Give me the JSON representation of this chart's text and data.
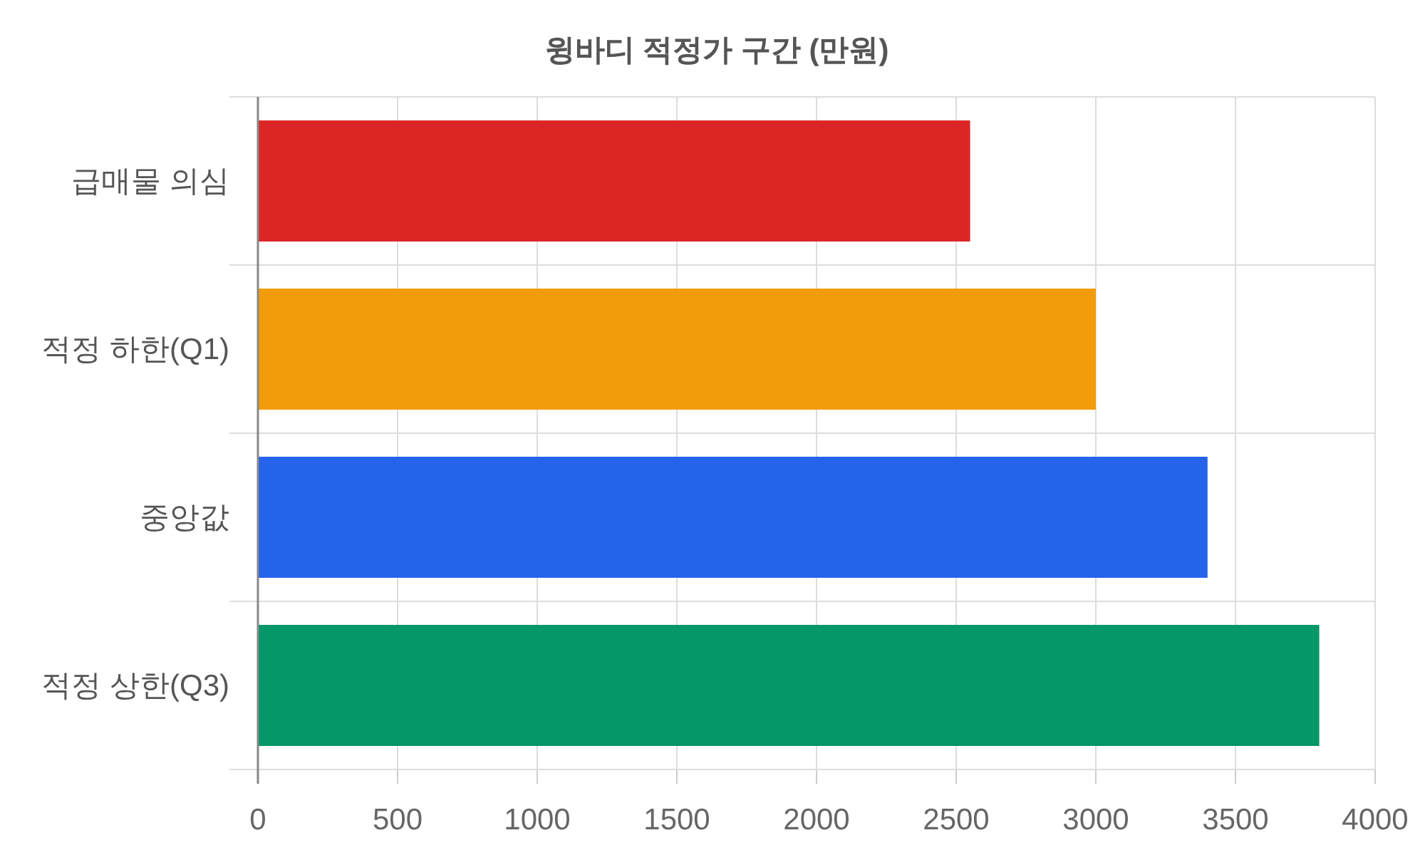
{
  "chart_data": {
    "type": "bar",
    "orientation": "horizontal",
    "title": "윙바디 적정가 구간 (만원)",
    "categories": [
      "급매물 의심",
      "적정 하한(Q1)",
      "중앙값",
      "적정 상한(Q3)"
    ],
    "values": [
      2550,
      3000,
      3400,
      3800
    ],
    "colors": [
      "#dc2626",
      "#f39c0b",
      "#2563eb",
      "#059669"
    ],
    "xlim": [
      0,
      4000
    ],
    "xticks": [
      0,
      500,
      1000,
      1500,
      2000,
      2500,
      3000,
      3500,
      4000
    ],
    "grid": true
  }
}
